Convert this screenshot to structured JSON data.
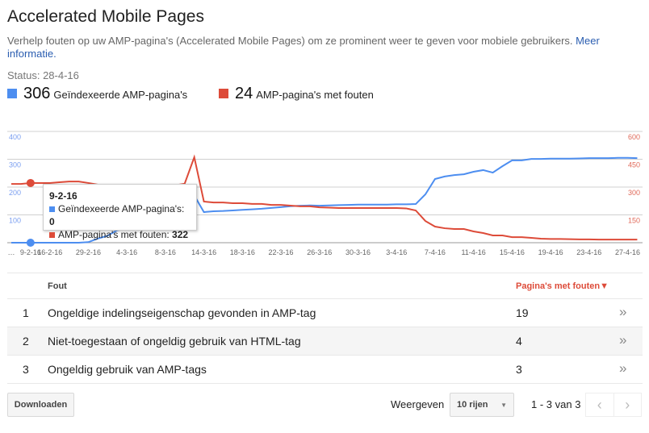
{
  "header": {
    "title": "Accelerated Mobile Pages",
    "description": "Verhelp fouten op uw AMP-pagina's (Accelerated Mobile Pages) om ze prominent weer te geven voor mobiele gebruikers.",
    "more_link": "Meer informatie.",
    "status": "Status: 28-4-16"
  },
  "summary": [
    {
      "value": "306",
      "label": "Geïndexeerde AMP-pagina's",
      "color": "#4d8ef0"
    },
    {
      "value": "24",
      "label": "AMP-pagina's met fouten",
      "color": "#dd4b39"
    }
  ],
  "chart_data": {
    "type": "line",
    "left_axis": {
      "ticks": [
        "100",
        "200",
        "300",
        "400"
      ],
      "range": [
        0,
        400
      ],
      "color": "#4d8ef0"
    },
    "right_axis": {
      "ticks": [
        "150",
        "300",
        "450",
        "600"
      ],
      "range": [
        0,
        600
      ],
      "color": "#dd4b39"
    },
    "grid": true,
    "categories": [
      "…",
      "",
      "9-2-16",
      "",
      "16-2-16",
      "",
      "",
      "",
      "29-2-16",
      "",
      "",
      "",
      "4-3-16",
      "",
      "",
      "",
      "8-3-16",
      "",
      "",
      "",
      "14-3-16",
      "",
      "",
      "",
      "18-3-16",
      "",
      "",
      "",
      "22-3-16",
      "",
      "",
      "",
      "26-3-16",
      "",
      "",
      "",
      "30-3-16",
      "",
      "",
      "",
      "3-4-16",
      "",
      "",
      "",
      "7-4-16",
      "",
      "",
      "",
      "11-4-16",
      "",
      "",
      "",
      "15-4-16",
      "",
      "",
      "",
      "19-4-16",
      "",
      "",
      "",
      "23-4-16",
      "",
      "",
      "",
      "27-4-16",
      ""
    ],
    "series": [
      {
        "name": "Geïndexeerde AMP-pagina's",
        "axis": "left",
        "color": "#4d8ef0",
        "values": [
          0,
          0,
          0,
          0,
          0,
          0,
          0,
          0,
          2,
          15,
          25,
          45,
          50,
          55,
          70,
          85,
          100,
          120,
          140,
          170,
          110,
          113,
          114,
          116,
          118,
          120,
          122,
          125,
          128,
          131,
          133,
          134,
          133,
          134,
          135,
          136,
          137,
          137,
          137,
          137,
          138,
          138,
          139,
          174,
          229,
          238,
          243,
          246,
          255,
          261,
          252,
          275,
          296,
          296,
          301,
          301,
          302,
          302,
          302,
          303,
          304,
          304,
          304,
          305,
          305,
          304
        ]
      },
      {
        "name": "AMP-pagina's met fouten",
        "axis": "right",
        "color": "#dd4b39",
        "values": [
          317,
          317,
          322,
          322,
          322,
          326,
          330,
          330,
          322,
          313,
          310,
          310,
          310,
          310,
          310,
          310,
          310,
          310,
          318,
          461,
          222,
          217,
          217,
          213,
          213,
          209,
          209,
          204,
          204,
          200,
          196,
          196,
          191,
          189,
          187,
          187,
          187,
          187,
          187,
          187,
          187,
          185,
          174,
          117,
          87,
          78,
          74,
          74,
          61,
          52,
          39,
          39,
          30,
          30,
          26,
          22,
          20,
          20,
          19,
          18,
          18,
          17,
          17,
          17,
          17,
          17
        ]
      }
    ],
    "highlight_index": 2
  },
  "tooltip": {
    "date": "9-2-16",
    "rows": [
      {
        "label": "Geïndexeerde AMP-pagina's:",
        "value": "0"
      },
      {
        "label": "AMP-pagina's met fouten:",
        "value": "322"
      }
    ]
  },
  "table": {
    "col_error": "Fout",
    "col_pages": "Pagina's met fouten",
    "sort_icon": "▼",
    "rows": [
      {
        "n": "1",
        "error": "Ongeldige indelingseigenschap gevonden in AMP-tag",
        "pages": "19"
      },
      {
        "n": "2",
        "error": "Niet-toegestaan of ongeldig gebruik van HTML-tag",
        "pages": "4"
      },
      {
        "n": "3",
        "error": "Ongeldig gebruik van AMP-tags",
        "pages": "3"
      }
    ]
  },
  "footer": {
    "download": "Downloaden",
    "show_label": "Weergeven",
    "rows_select": "10 rijen",
    "range": "1 - 3 van 3"
  }
}
